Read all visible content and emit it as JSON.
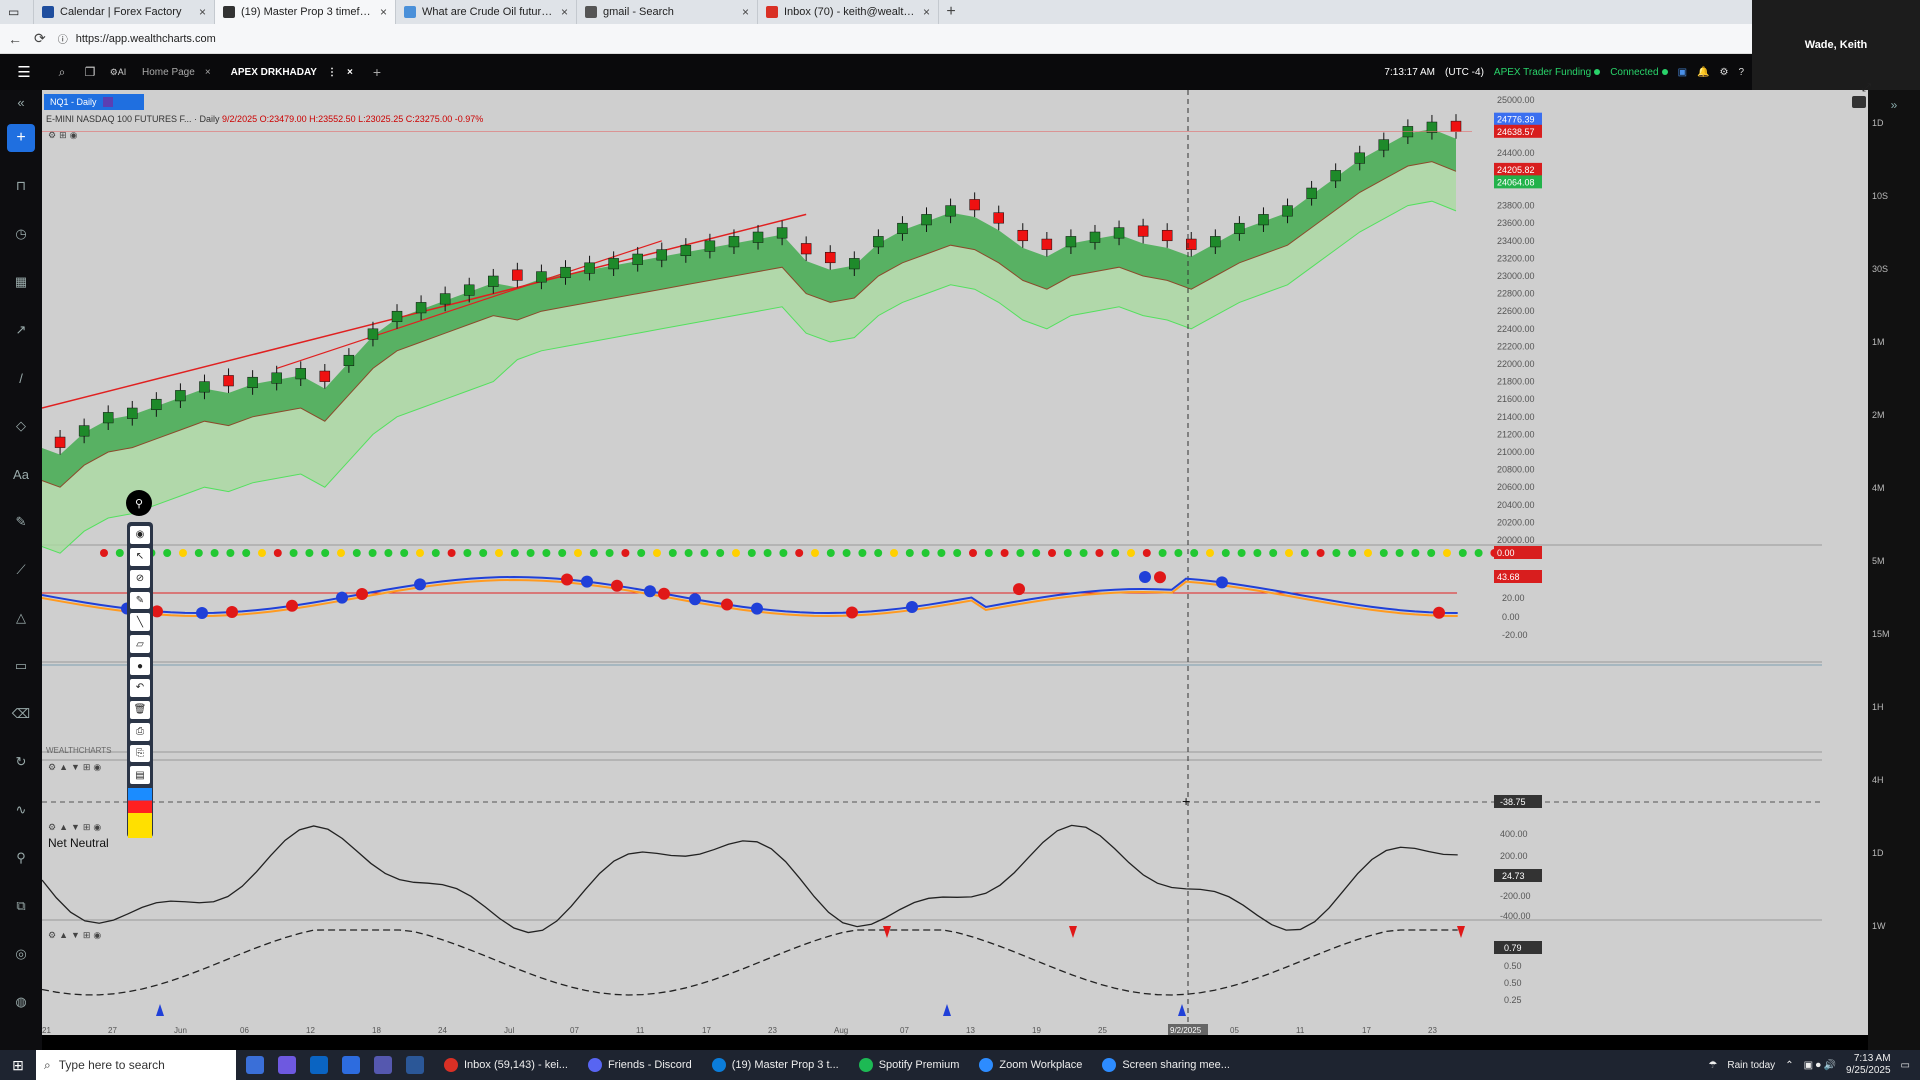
{
  "browser": {
    "tabs": [
      {
        "label": "Calendar | Forex Factory",
        "icon": "forex-factory-icon",
        "color": "#1f4e9e"
      },
      {
        "label": "(19) Master Prop 3 timeframes - ...",
        "icon": "youtube-icon",
        "color": "#333",
        "active": true
      },
      {
        "label": "What are Crude Oil futures & how...",
        "icon": "globe-icon",
        "color": "#4a90d9"
      },
      {
        "label": "gmail - Search",
        "icon": "search-icon",
        "color": "#555"
      },
      {
        "label": "Inbox (70) - keith@wealthcharts...",
        "icon": "gmail-icon",
        "color": "#d93025"
      }
    ],
    "url": "https://app.wealthcharts.com",
    "user_name": "Wade, Keith"
  },
  "app_header": {
    "tabs": [
      {
        "label": "Home Page",
        "active": false
      },
      {
        "label": "APEX DRKHADAY",
        "active": true
      }
    ],
    "time": "7:13:17 AM",
    "tz": "(UTC -4)",
    "account": "APEX Trader Funding",
    "status": "Connected"
  },
  "chart": {
    "symbol_tag": "NQ1 - Daily",
    "symbol_name": "E-MINI NASDAQ 100 FUTURES F... · Daily",
    "ohlc": "9/2/2025 O:23479.00 H:23552.50 L:23025.25 C:23275.00 -0.97%",
    "price_labels": [
      "25000.00",
      "24776.39",
      "24638.57",
      "24400.00",
      "24205.82",
      "24064.08",
      "23800.00",
      "23600.00",
      "23400.00",
      "23200.00",
      "23000.00",
      "22800.00",
      "22600.00",
      "22400.00",
      "22200.00",
      "22000.00",
      "21800.00",
      "21600.00",
      "21400.00",
      "21200.00",
      "21000.00",
      "20800.00",
      "20600.00",
      "20400.00",
      "20200.00",
      "20000.00"
    ],
    "osc1_labels": [
      "0.00",
      "43.68",
      "20.00",
      "0.00",
      "-20.00",
      "-38.75"
    ],
    "osc2_label": "Net Neutral",
    "osc2_labels": [
      "400.00",
      "200.00",
      "24.73",
      "-200.00",
      "-400.00"
    ],
    "osc3_labels": [
      "0.79",
      "0.50",
      "0.50",
      "0.25"
    ],
    "date_labels": [
      "21",
      "27",
      "Jun",
      "06",
      "12",
      "18",
      "24",
      "Jul",
      "07",
      "11",
      "17",
      "23",
      "Aug",
      "07",
      "13",
      "19",
      "25",
      "9/2/2025",
      "05",
      "11",
      "17",
      "23"
    ],
    "timeframes": [
      "1D",
      "10S",
      "30S",
      "1M",
      "2M",
      "4M",
      "5M",
      "15M",
      "1H",
      "4H",
      "1D",
      "1W"
    ],
    "watermark": "WEALTHCHARTS"
  },
  "taskbar": {
    "search_placeholder": "Type here to search",
    "apps": [
      {
        "label": "Inbox (59,143) - kei...",
        "color": "#d93025"
      },
      {
        "label": "Friends - Discord",
        "color": "#5865f2"
      },
      {
        "label": "(19) Master Prop 3 t...",
        "color": "#0b7dda"
      },
      {
        "label": "Spotify Premium",
        "color": "#1db954"
      },
      {
        "label": "Zoom Workplace",
        "color": "#2d8cff"
      },
      {
        "label": "Screen sharing mee...",
        "color": "#2d8cff"
      }
    ],
    "weather": "Rain today",
    "clock_time": "7:13 AM",
    "clock_date": "9/25/2025"
  },
  "chart_data": {
    "type": "candlestick",
    "x_labels": [
      "21",
      "27",
      "Jun",
      "06",
      "12",
      "18",
      "24",
      "Jul",
      "07",
      "11",
      "17",
      "23",
      "Aug",
      "07",
      "13",
      "19",
      "25",
      "9/2/2025",
      "05",
      "11",
      "17",
      "23"
    ],
    "ylim": [
      20000,
      25000
    ],
    "price_series": [
      21150,
      21050,
      21300,
      21450,
      21500,
      21600,
      21700,
      21800,
      21750,
      21850,
      21900,
      21950,
      21800,
      22100,
      22400,
      22600,
      22700,
      22800,
      22900,
      23000,
      22950,
      23050,
      23100,
      23150,
      23200,
      23250,
      23300,
      23350,
      23400,
      23450,
      23500,
      23550,
      23250,
      23150,
      23200,
      23450,
      23600,
      23700,
      23800,
      23750,
      23600,
      23400,
      23300,
      23450,
      23500,
      23550,
      23450,
      23400,
      23300,
      23450,
      23600,
      23700,
      23800,
      24000,
      24200,
      24400,
      24550,
      24700,
      24750,
      24640
    ],
    "annotated_values": {
      "last_price": 24638.57,
      "upper_band": 24776.39,
      "mid_band": 24205.82,
      "lower_band": 24064.08,
      "osc1_value": 43.68,
      "osc1_marker": -38.75,
      "osc2_value": 24.73,
      "osc3_value": 0.79
    }
  }
}
